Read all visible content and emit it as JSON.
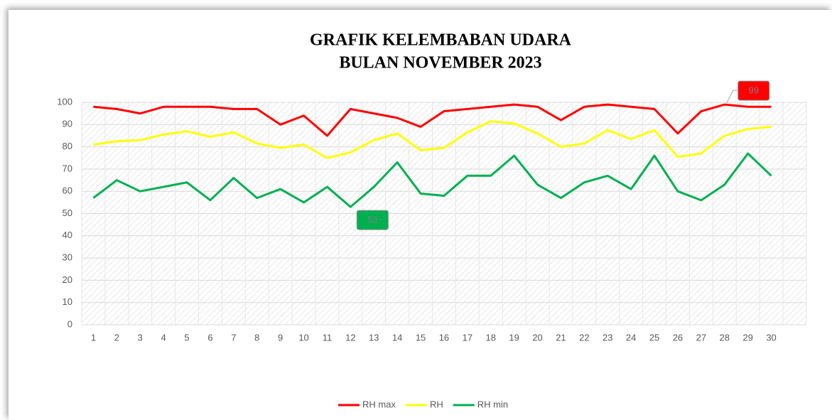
{
  "chart_data": {
    "type": "line",
    "title": [
      "GRAFIK KELEMBABAN UDARA",
      "BULAN NOVEMBER 2023"
    ],
    "categories": [
      "1",
      "2",
      "3",
      "4",
      "5",
      "6",
      "7",
      "8",
      "9",
      "10",
      "11",
      "12",
      "13",
      "14",
      "15",
      "16",
      "17",
      "18",
      "19",
      "20",
      "21",
      "22",
      "23",
      "24",
      "25",
      "26",
      "27",
      "28",
      "29",
      "30"
    ],
    "series": [
      {
        "name": "RH max",
        "color": "#ff0000",
        "values": [
          98,
          97,
          95,
          98,
          98,
          98,
          97,
          97,
          90,
          94,
          85,
          97,
          95,
          93,
          89,
          96,
          97,
          98,
          99,
          98,
          92,
          98,
          99,
          98,
          97,
          86,
          96,
          99,
          98,
          98
        ],
        "value_labels": [
          null,
          null,
          null,
          null,
          null,
          null,
          null,
          null,
          null,
          null,
          null,
          null,
          null,
          null,
          null,
          null,
          null,
          null,
          null,
          null,
          null,
          null,
          null,
          null,
          null,
          null,
          null,
          "99",
          null,
          null
        ]
      },
      {
        "name": "RH",
        "color": "#ffff00",
        "values": [
          81,
          82.5,
          83,
          85.5,
          87,
          84.5,
          86.5,
          81.5,
          79.5,
          81,
          75,
          77.5,
          83,
          86,
          78.5,
          79.5,
          86.5,
          91.5,
          90.5,
          86,
          80,
          81.5,
          87.5,
          83.5,
          87.5,
          75.5,
          77,
          85,
          88,
          89
        ]
      },
      {
        "name": "RH min",
        "color": "#00b050",
        "values": [
          57,
          65,
          60,
          62,
          64,
          56,
          66,
          57,
          61,
          55,
          62,
          53,
          62,
          73,
          59,
          58,
          67,
          67,
          76,
          63,
          57,
          64,
          67,
          61,
          76,
          60,
          56,
          63,
          77,
          67
        ],
        "value_labels": [
          null,
          null,
          null,
          null,
          null,
          null,
          null,
          null,
          null,
          null,
          null,
          "53",
          null,
          null,
          null,
          null,
          null,
          null,
          null,
          null,
          null,
          null,
          null,
          null,
          null,
          null,
          null,
          null,
          null,
          null
        ]
      }
    ],
    "ylim": [
      0,
      100
    ],
    "yticks": [
      0,
      10,
      20,
      30,
      40,
      50,
      60,
      70,
      80,
      90,
      100
    ],
    "grid": true,
    "legend": "bottom"
  }
}
